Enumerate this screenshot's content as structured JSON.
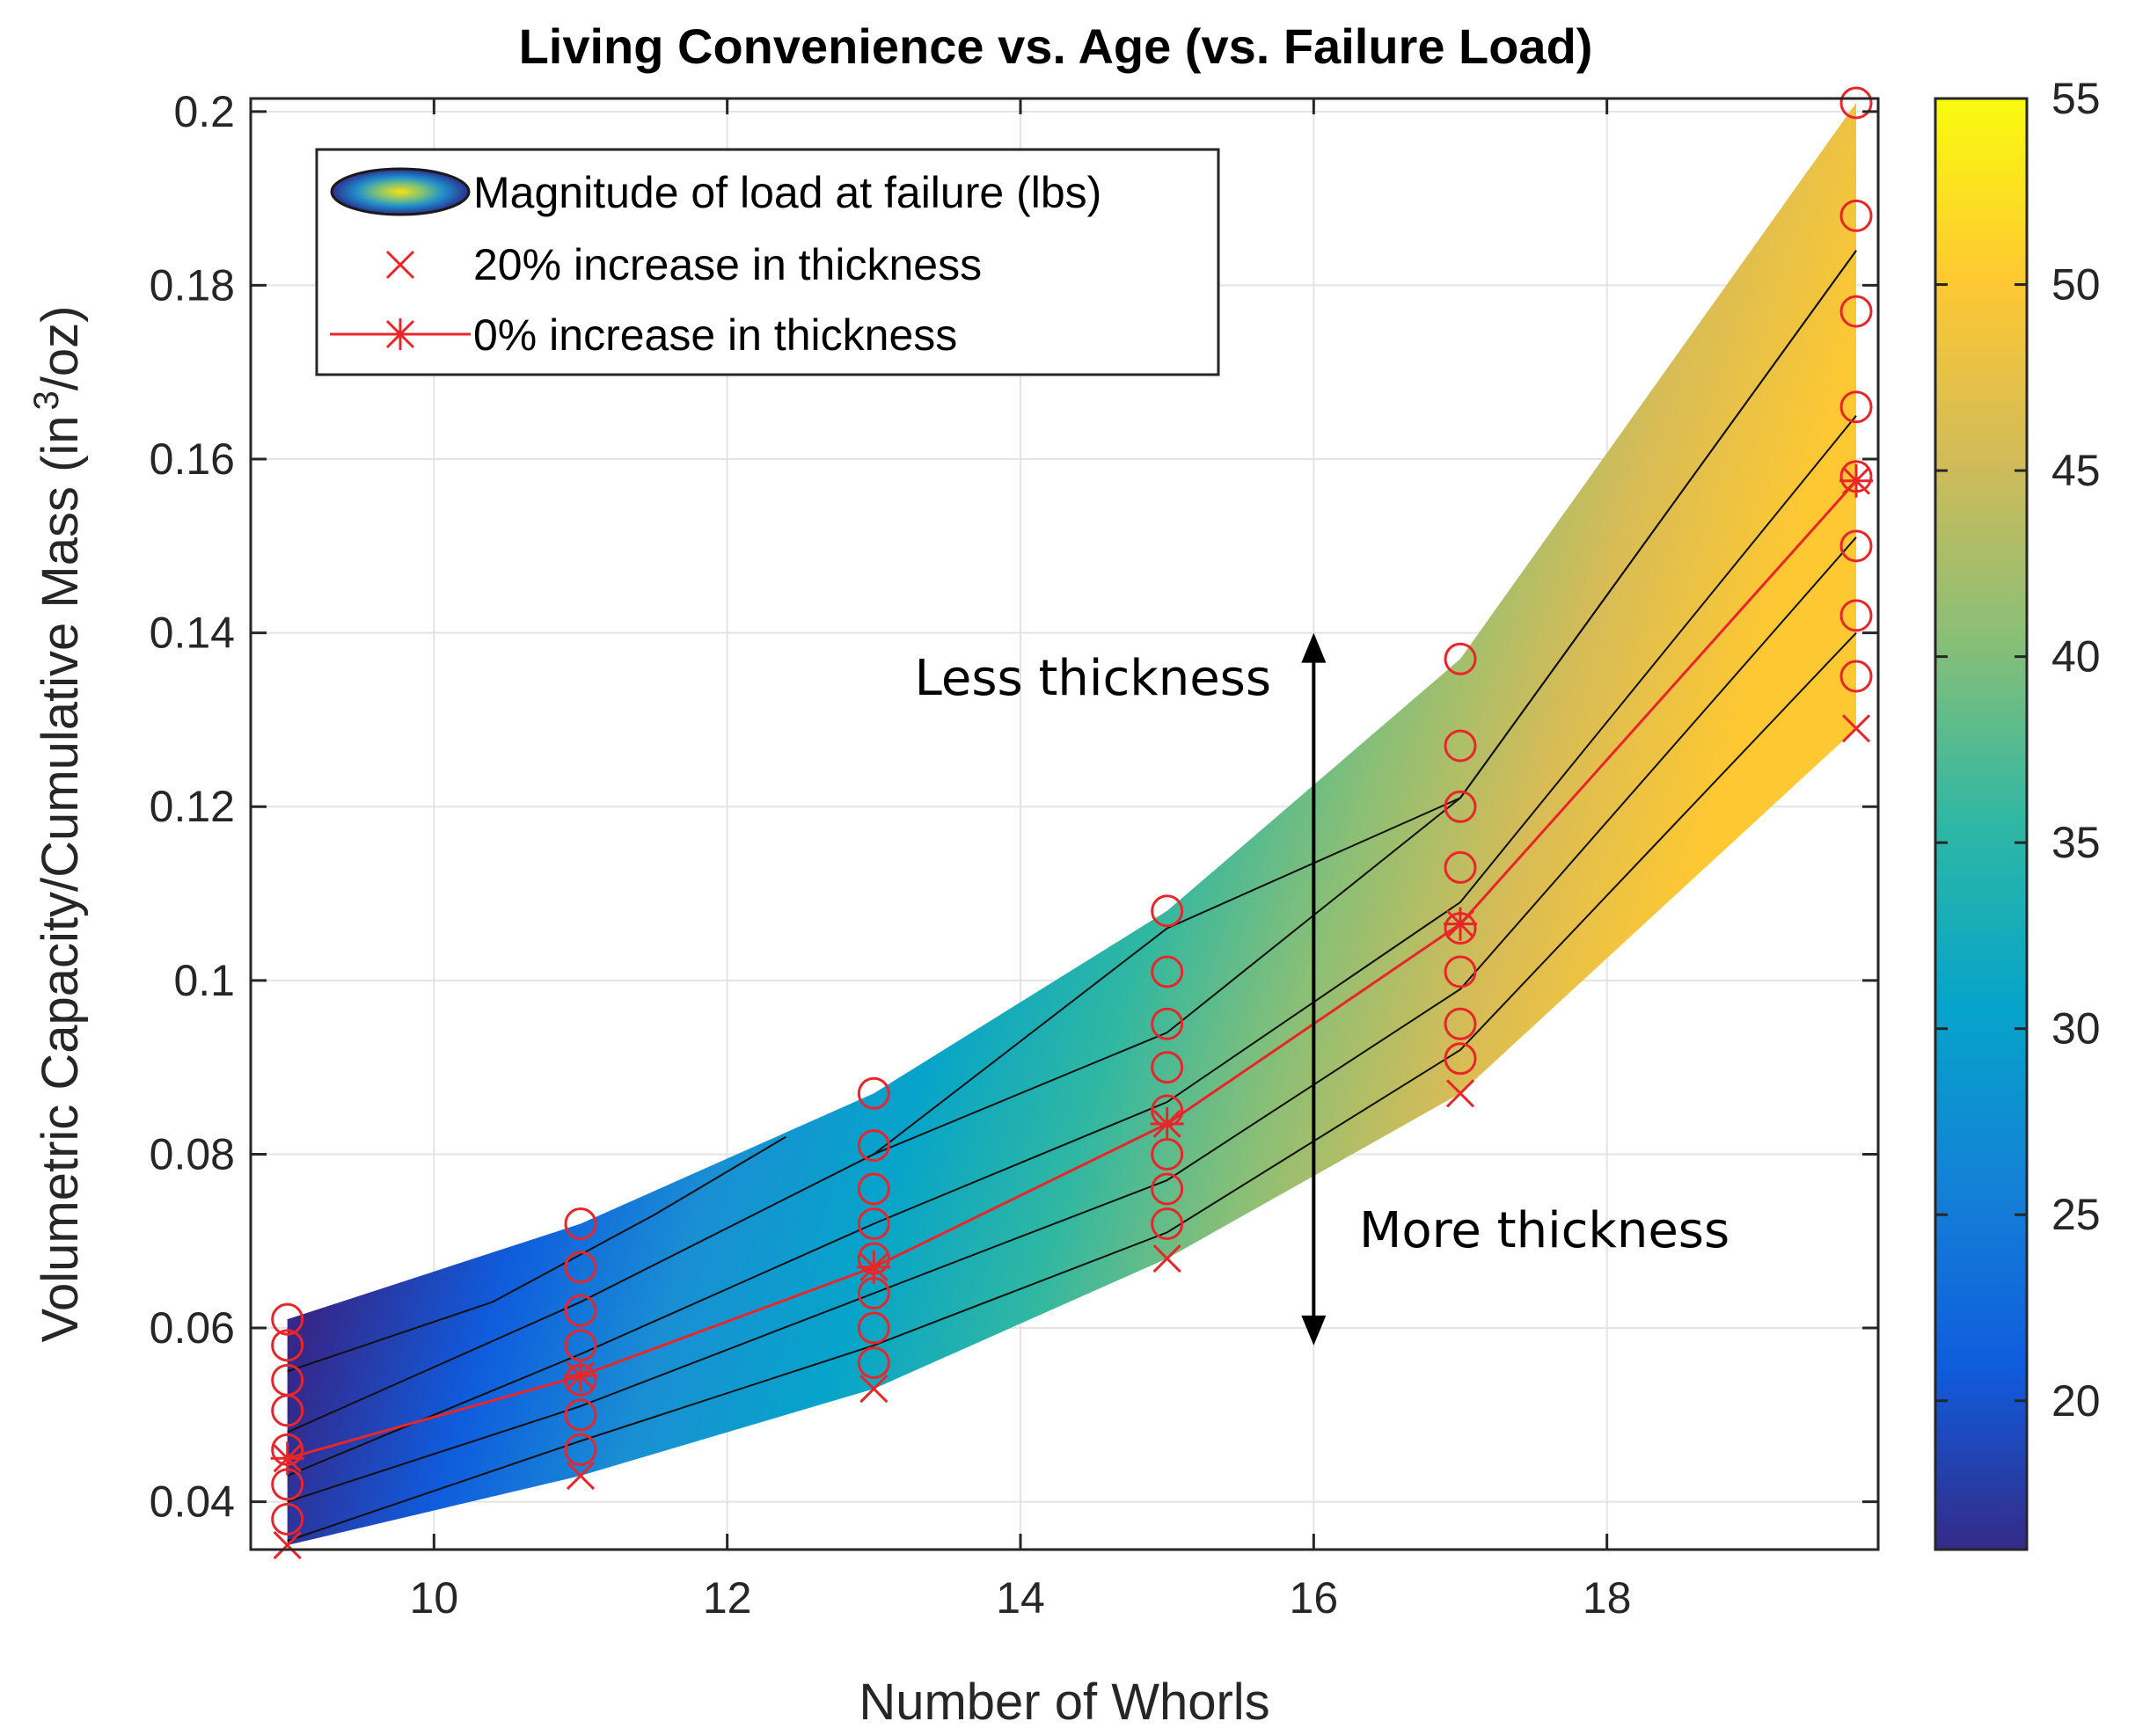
{
  "chart_data": {
    "type": "contour",
    "title": "Living Convenience vs. Age (vs. Failure Load)",
    "xlabel": "Number of Whorls",
    "ylabel_main": "Volumetric Capacity/Cumulative Mass (in",
    "ylabel_sup": "3",
    "ylabel_tail": "/oz)",
    "xlim": [
      8.75,
      19.85
    ],
    "ylim": [
      0.0345,
      0.2015
    ],
    "xticks": [
      10,
      12,
      14,
      16,
      18
    ],
    "xtick_labels": [
      "10",
      "12",
      "14",
      "16",
      "18"
    ],
    "yticks": [
      0.04,
      0.06,
      0.08,
      0.1,
      0.12,
      0.14,
      0.16,
      0.18,
      0.2
    ],
    "ytick_labels": [
      "0.04",
      "0.06",
      "0.08",
      "0.1",
      "0.12",
      "0.14",
      "0.16",
      "0.18",
      "0.2"
    ],
    "colorbar": {
      "min": 16,
      "max": 55,
      "ticks": [
        20,
        25,
        30,
        35,
        40,
        45,
        50,
        55
      ],
      "tick_labels": [
        "20",
        "25",
        "30",
        "35",
        "40",
        "45",
        "50",
        "55"
      ],
      "colormap": [
        "#352a87",
        "#0f5cdd",
        "#1481d6",
        "#06a4ca",
        "#2eb7a4",
        "#87bf77",
        "#d1bb59",
        "#fec832",
        "#f9fb0e"
      ]
    },
    "whorls": [
      9,
      11,
      13,
      15,
      17,
      19.7
    ],
    "capacity_levels": [
      [
        0.035,
        0.038,
        0.042,
        0.046,
        0.0505,
        0.054,
        0.058,
        0.061
      ],
      [
        0.043,
        0.046,
        0.05,
        0.054,
        0.058,
        0.062,
        0.067,
        0.072
      ],
      [
        0.053,
        0.056,
        0.06,
        0.064,
        0.068,
        0.072,
        0.076,
        0.081,
        0.087
      ],
      [
        0.068,
        0.072,
        0.076,
        0.08,
        0.085,
        0.09,
        0.095,
        0.101,
        0.108
      ],
      [
        0.087,
        0.091,
        0.095,
        0.101,
        0.106,
        0.113,
        0.12,
        0.127,
        0.137
      ],
      [
        0.129,
        0.135,
        0.142,
        0.15,
        0.158,
        0.166,
        0.177,
        0.188,
        0.201
      ]
    ],
    "series": [
      {
        "name": "20% increase in thickness",
        "x": [
          9,
          11,
          13,
          15,
          17,
          19.7
        ],
        "y": [
          0.035,
          0.043,
          0.053,
          0.068,
          0.087,
          0.129
        ]
      },
      {
        "name": "0% increase in thickness",
        "x": [
          9,
          11,
          13,
          15,
          17,
          19.7
        ],
        "y": [
          0.045,
          0.0545,
          0.067,
          0.0835,
          0.1065,
          0.1575
        ]
      }
    ],
    "contour_lines": [
      {
        "x": [
          9,
          11,
          13,
          15,
          17,
          19.7
        ],
        "y": [
          0.0355,
          0.047,
          0.058,
          0.071,
          0.092,
          0.14
        ]
      },
      {
        "x": [
          9,
          11,
          13,
          15,
          17,
          19.7
        ],
        "y": [
          0.04,
          0.051,
          0.064,
          0.077,
          0.099,
          0.151
        ]
      },
      {
        "x": [
          9,
          11,
          13,
          15,
          17,
          19.7
        ],
        "y": [
          0.043,
          0.057,
          0.072,
          0.086,
          0.109,
          0.165
        ]
      },
      {
        "x": [
          9,
          11,
          13,
          15,
          17,
          19.7
        ],
        "y": [
          0.048,
          0.063,
          0.08,
          0.094,
          0.121,
          0.184
        ]
      },
      {
        "x": [
          9,
          10.4,
          11.5,
          12.4
        ],
        "y": [
          0.055,
          0.063,
          0.073,
          0.082
        ]
      },
      {
        "x": [
          13,
          15,
          17,
          19.7
        ],
        "y": [
          0.08,
          0.106,
          0.121,
          0.184
        ]
      }
    ],
    "legend": {
      "position": "top-left",
      "entries": [
        "Magnitude of load at failure (lbs)",
        "20% increase in thickness",
        "0% increase in thickness"
      ]
    },
    "annotations": {
      "less": "Less thickness",
      "more": "More thickness",
      "arrow_x": 16,
      "arrow_y": [
        0.058,
        0.14
      ]
    }
  }
}
